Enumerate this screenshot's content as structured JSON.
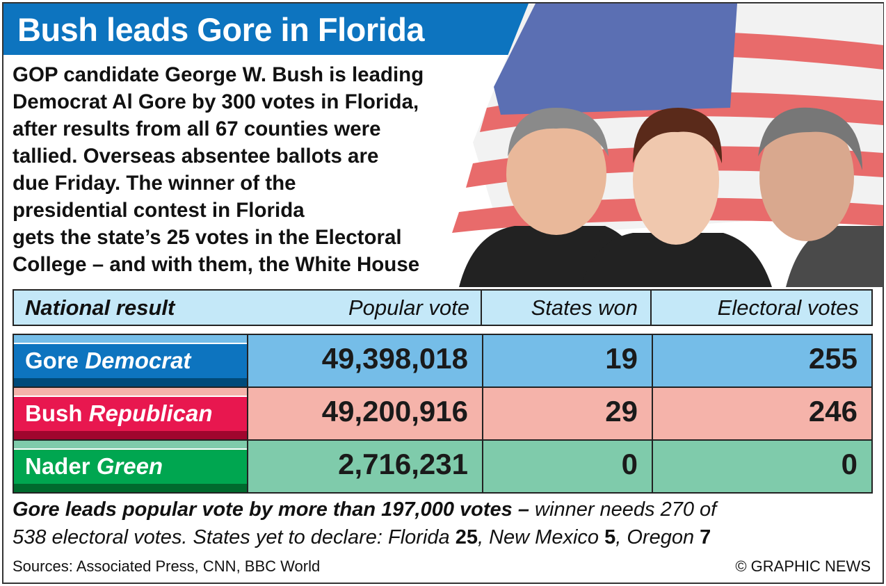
{
  "title": "Bush leads Gore in Florida",
  "intro": "GOP candidate George W. Bush is leading\nDemocrat Al Gore by 300 votes in Florida,\nafter results from all 67 counties were\ntallied. Overseas absentee ballots are\ndue Friday. The winner of the\npresidential contest in Florida\ngets the state’s 25 votes in the Electoral\nCollege – and with them, the White House",
  "chart_data": {
    "type": "table",
    "title": "National result",
    "columns": [
      "National result",
      "Popular vote",
      "States won",
      "Electoral votes"
    ],
    "rows": [
      {
        "candidate": "Gore",
        "party": "Democrat",
        "popular_vote": "49,398,018",
        "states_won": "19",
        "electoral_votes": "255",
        "color": "#0d74bf",
        "cell_color": "#75bde8"
      },
      {
        "candidate": "Bush",
        "party": "Republican",
        "popular_vote": "49,200,916",
        "states_won": "29",
        "electoral_votes": "246",
        "color": "#e8174f",
        "cell_color": "#f5b3aa"
      },
      {
        "candidate": "Nader",
        "party": "Green",
        "popular_vote": "2,716,231",
        "states_won": "0",
        "electoral_votes": "0",
        "color": "#00a650",
        "cell_color": "#7fcbab"
      }
    ]
  },
  "footer": {
    "bold_text": "Gore leads popular vote by more than 197,000 votes –",
    "text1": " winner needs 270 of",
    "text2": "538 electoral votes. States yet to declare: Florida ",
    "fl": "25",
    "text3": ", New Mexico ",
    "nm": "5",
    "text4": ", Oregon ",
    "or": "7"
  },
  "sources": "Sources: Associated Press, CNN, BBC World",
  "copyright": "© GRAPHIC NEWS"
}
